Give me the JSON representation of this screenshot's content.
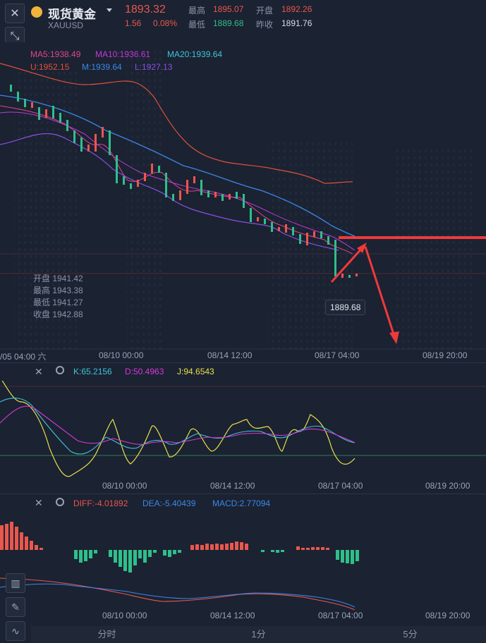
{
  "header": {
    "symbol_name": "现货黄金",
    "symbol_code": "XAUUSD",
    "last_price": "1893.32",
    "change": "1.56",
    "change_pct": "0.08%",
    "high_label": "最高",
    "high_value": "1895.07",
    "open_label": "开盘",
    "open_value": "1892.26",
    "low_label": "最低",
    "low_value": "1889.68",
    "prev_close_label": "昨收",
    "prev_close_value": "1891.76"
  },
  "main_chart": {
    "ma5": "MA5:1938.49",
    "ma10": "MA10:1936.61",
    "ma20": "MA20:1939.64",
    "boll_u": "U:1952.15",
    "boll_m": "M:1939.64",
    "boll_l": "L:1927.13",
    "ohlc": {
      "open": "开盘 1941.42",
      "high": "最高 1943.38",
      "low": "最低 1941.27",
      "close": "收盘 1942.88"
    },
    "low_marker": "1889.68",
    "x_ticks": [
      "/05 04:00 六",
      "08/10 00:00",
      "08/14 12:00",
      "08/17 04:00",
      "08/19 20:00"
    ]
  },
  "kdj_panel": {
    "k": "K:65.2156",
    "d": "D:50.4963",
    "j": "J:94.6543",
    "x_ticks": [
      "08/10 00:00",
      "08/14 12:00",
      "08/17 04:00",
      "08/19 20:00"
    ]
  },
  "macd_panel": {
    "diff": "DIFF:-4.01892",
    "dea": "DEA:-5.40439",
    "macd": "MACD:2.77094",
    "x_ticks": [
      "08/10 00:00",
      "08/14 12:00",
      "08/17 04:00",
      "08/19 20:00"
    ]
  },
  "tabs": [
    "分时",
    "1分",
    "5分"
  ],
  "colors": {
    "up": "#e9574d",
    "down": "#2fbf8a",
    "ma5": "#e0458f",
    "ma10": "#c038d6",
    "ma20": "#3fc4d8",
    "boll_u": "#e0523a",
    "boll_m": "#3a88e6",
    "boll_l": "#8a4fe0",
    "k": "#3fc4d8",
    "d": "#d638d6",
    "j": "#e8e04a"
  },
  "icons": [
    "close-icon",
    "collapse-icon",
    "gold-coin-icon",
    "dropdown-icon",
    "candle-icon",
    "pen-icon",
    "indicator-icon",
    "settings-icon"
  ]
}
